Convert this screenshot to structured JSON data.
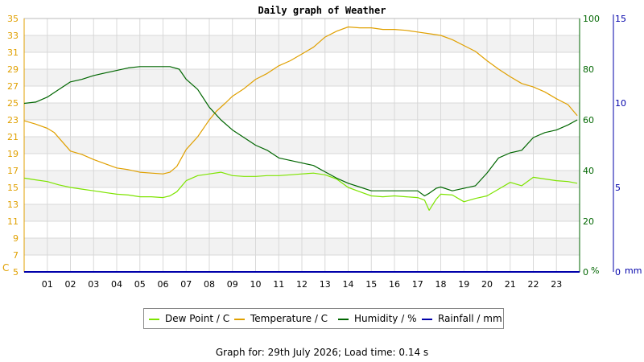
{
  "chart_data": {
    "type": "line",
    "title": "Daily graph of Weather",
    "x_ticks": [
      "01",
      "02",
      "03",
      "04",
      "05",
      "06",
      "07",
      "08",
      "09",
      "10",
      "11",
      "12",
      "13",
      "14",
      "15",
      "16",
      "17",
      "18",
      "19",
      "20",
      "21",
      "22",
      "23"
    ],
    "x_range_hours": [
      0,
      24
    ],
    "left_axis": {
      "unit_label": "C",
      "range": [
        5,
        35
      ],
      "ticks": [
        5,
        7,
        9,
        11,
        13,
        15,
        17,
        19,
        21,
        23,
        25,
        27,
        29,
        31,
        33,
        35
      ],
      "color": "#e0a000"
    },
    "right_axis_humidity": {
      "unit_label": "%",
      "range": [
        0,
        100
      ],
      "ticks": [
        0,
        20,
        40,
        60,
        80,
        100
      ],
      "color": "#006600"
    },
    "right_axis_rain": {
      "unit_label": "mm",
      "range": [
        0,
        15
      ],
      "ticks": [
        0,
        5,
        10,
        15
      ],
      "color": "#0000aa"
    },
    "grid": true,
    "legend_position": "bottom",
    "series": [
      {
        "name": "Dew Point / C",
        "axis": "left",
        "color": "#7ee400",
        "x": [
          0,
          0.5,
          1,
          1.5,
          2,
          2.5,
          3,
          3.5,
          4,
          4.5,
          5,
          5.5,
          6,
          6.3,
          6.6,
          7,
          7.5,
          8,
          8.5,
          9,
          9.5,
          10,
          10.5,
          11,
          11.5,
          12,
          12.5,
          13,
          13.5,
          14,
          14.5,
          15,
          15.5,
          16,
          16.5,
          17,
          17.3,
          17.5,
          17.8,
          18,
          18.5,
          19,
          19.5,
          20,
          20.5,
          21,
          21.5,
          22,
          22.5,
          23,
          23.5,
          23.9
        ],
        "values": [
          16.1,
          15.9,
          15.7,
          15.3,
          15.0,
          14.8,
          14.6,
          14.4,
          14.2,
          14.1,
          13.9,
          13.9,
          13.8,
          14.0,
          14.5,
          15.8,
          16.4,
          16.6,
          16.8,
          16.4,
          16.3,
          16.3,
          16.4,
          16.4,
          16.5,
          16.6,
          16.7,
          16.5,
          16.0,
          15.0,
          14.5,
          14.0,
          13.9,
          14.0,
          13.9,
          13.8,
          13.5,
          12.3,
          13.6,
          14.2,
          14.1,
          13.3,
          13.7,
          14.0,
          14.8,
          15.6,
          15.2,
          16.2,
          16.0,
          15.8,
          15.7,
          15.5
        ]
      },
      {
        "name": "Temperature / C",
        "axis": "left",
        "color": "#e0a000",
        "x": [
          0,
          0.5,
          1,
          1.3,
          2,
          2.5,
          3,
          3.5,
          4,
          4.5,
          5,
          5.5,
          6,
          6.3,
          6.6,
          7,
          7.5,
          8,
          8.3,
          8.7,
          9,
          9.5,
          10,
          10.5,
          11,
          11.5,
          12,
          12.5,
          13,
          13.5,
          14,
          14.5,
          15,
          15.5,
          16,
          16.5,
          17,
          17.5,
          18,
          18.5,
          19,
          19.5,
          20,
          20.5,
          21,
          21.5,
          22,
          22.5,
          23,
          23.5,
          23.9
        ],
        "values": [
          22.9,
          22.5,
          22.0,
          21.5,
          19.3,
          18.9,
          18.3,
          17.8,
          17.3,
          17.1,
          16.8,
          16.7,
          16.6,
          16.8,
          17.5,
          19.5,
          21.0,
          23.0,
          24.0,
          25.0,
          25.8,
          26.7,
          27.8,
          28.5,
          29.4,
          30.0,
          30.8,
          31.6,
          32.8,
          33.5,
          34.0,
          33.9,
          33.9,
          33.7,
          33.7,
          33.6,
          33.4,
          33.2,
          33.0,
          32.5,
          31.8,
          31.1,
          30.0,
          29.0,
          28.1,
          27.3,
          26.9,
          26.3,
          25.5,
          24.8,
          23.5
        ]
      },
      {
        "name": "Humidity / %",
        "axis": "humidity",
        "color": "#006600",
        "x": [
          0,
          0.5,
          1,
          1.5,
          2,
          2.5,
          3,
          3.5,
          4,
          4.5,
          5,
          5.5,
          6,
          6.3,
          6.7,
          7,
          7.5,
          8,
          8.5,
          9,
          9.5,
          10,
          10.5,
          11,
          11.5,
          12,
          12.5,
          13,
          13.5,
          14,
          14.5,
          15,
          15.5,
          16,
          16.5,
          17,
          17.3,
          17.5,
          17.8,
          18,
          18.5,
          19,
          19.5,
          20,
          20.5,
          21,
          21.5,
          22,
          22.5,
          23,
          23.5,
          23.9
        ],
        "values": [
          66.5,
          67,
          69,
          72,
          75,
          76,
          77.5,
          78.5,
          79.5,
          80.5,
          81,
          81,
          81,
          81,
          80,
          76,
          72,
          65,
          60,
          56,
          53,
          50,
          48,
          45,
          44,
          43,
          42,
          39.5,
          37,
          35,
          33.5,
          32,
          32,
          32,
          32,
          32,
          30,
          31,
          33,
          33.5,
          32,
          33,
          34,
          39,
          45,
          47,
          48,
          53,
          55,
          56,
          58,
          60
        ]
      },
      {
        "name": "Rainfall / mm",
        "axis": "rain",
        "color": "#0000aa",
        "x": [
          0,
          24
        ],
        "values": [
          0,
          0
        ]
      }
    ]
  },
  "footer": {
    "text": "Graph for: 29th July 2026; Load time: 0.14 s"
  }
}
